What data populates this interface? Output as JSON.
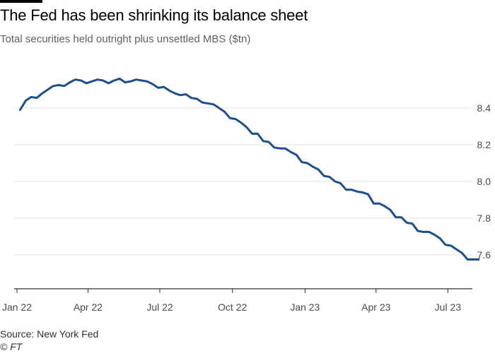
{
  "header": {
    "title": "The Fed has been shrinking its balance sheet",
    "subtitle": "Total securities held outright plus unsettled MBS ($tn)"
  },
  "footer": {
    "source": "Source: New York Fed",
    "credit": "© FT"
  },
  "colors": {
    "line": "#1c4f8f",
    "grid": "#e6e3e0",
    "axis": "#33302e"
  },
  "chart_data": {
    "type": "line",
    "title": "The Fed has been shrinking its balance sheet",
    "subtitle": "Total securities held outright plus unsettled MBS ($tn)",
    "xlabel": "",
    "ylabel": "",
    "x_ticks": [
      "Jan 22",
      "Apr 22",
      "Jul 22",
      "Oct 22",
      "Jan 23",
      "Apr 23",
      "Jul 23"
    ],
    "y_ticks": [
      7.6,
      7.8,
      8.0,
      8.2,
      8.4
    ],
    "xlim": [
      "2022-01-01",
      "2023-08-31"
    ],
    "ylim": [
      7.4,
      8.6
    ],
    "y_axis_position": "right",
    "grid": "horizontal",
    "legend": "none",
    "series": [
      {
        "x": [
          "2022-01-05",
          "2022-01-12",
          "2022-01-19",
          "2022-01-26",
          "2022-02-02",
          "2022-02-09",
          "2022-02-16",
          "2022-02-23",
          "2022-03-02",
          "2022-03-09",
          "2022-03-16",
          "2022-03-23",
          "2022-03-30",
          "2022-04-06",
          "2022-04-13",
          "2022-04-20",
          "2022-04-27",
          "2022-05-04",
          "2022-05-11",
          "2022-05-18",
          "2022-05-25",
          "2022-06-01",
          "2022-06-08",
          "2022-06-15",
          "2022-06-22",
          "2022-06-29",
          "2022-07-06",
          "2022-07-13",
          "2022-07-20",
          "2022-07-27",
          "2022-08-03",
          "2022-08-10",
          "2022-08-17",
          "2022-08-24",
          "2022-08-31",
          "2022-09-07",
          "2022-09-14",
          "2022-09-21",
          "2022-09-28",
          "2022-10-05",
          "2022-10-12",
          "2022-10-19",
          "2022-10-26",
          "2022-11-02",
          "2022-11-09",
          "2022-11-16",
          "2022-11-23",
          "2022-11-30",
          "2022-12-07",
          "2022-12-14",
          "2022-12-21",
          "2022-12-28",
          "2023-01-04",
          "2023-01-11",
          "2023-01-18",
          "2023-01-25",
          "2023-02-01",
          "2023-02-08",
          "2023-02-15",
          "2023-02-22",
          "2023-03-01",
          "2023-03-08",
          "2023-03-15",
          "2023-03-22",
          "2023-03-29",
          "2023-04-05",
          "2023-04-12",
          "2023-04-19",
          "2023-04-26",
          "2023-05-03",
          "2023-05-10",
          "2023-05-17",
          "2023-05-24",
          "2023-05-31",
          "2023-06-07",
          "2023-06-14",
          "2023-06-21",
          "2023-06-28",
          "2023-07-05",
          "2023-07-12",
          "2023-07-19",
          "2023-07-26",
          "2023-08-02",
          "2023-08-09"
        ],
        "values": [
          8.39,
          8.44,
          8.46,
          8.455,
          8.48,
          8.5,
          8.52,
          8.525,
          8.52,
          8.54,
          8.555,
          8.55,
          8.535,
          8.545,
          8.555,
          8.55,
          8.535,
          8.55,
          8.56,
          8.54,
          8.545,
          8.555,
          8.55,
          8.545,
          8.53,
          8.51,
          8.515,
          8.495,
          8.48,
          8.47,
          8.475,
          8.455,
          8.45,
          8.43,
          8.425,
          8.42,
          8.4,
          8.38,
          8.345,
          8.34,
          8.32,
          8.295,
          8.26,
          8.26,
          8.22,
          8.215,
          8.185,
          8.18,
          8.18,
          8.16,
          8.145,
          8.105,
          8.1,
          8.08,
          8.065,
          8.03,
          8.025,
          8.0,
          7.99,
          7.955,
          7.955,
          7.945,
          7.94,
          7.93,
          7.88,
          7.88,
          7.865,
          7.845,
          7.805,
          7.805,
          7.775,
          7.77,
          7.73,
          7.725,
          7.725,
          7.71,
          7.69,
          7.655,
          7.65,
          7.63,
          7.61,
          7.575,
          7.575,
          7.575
        ]
      }
    ]
  }
}
